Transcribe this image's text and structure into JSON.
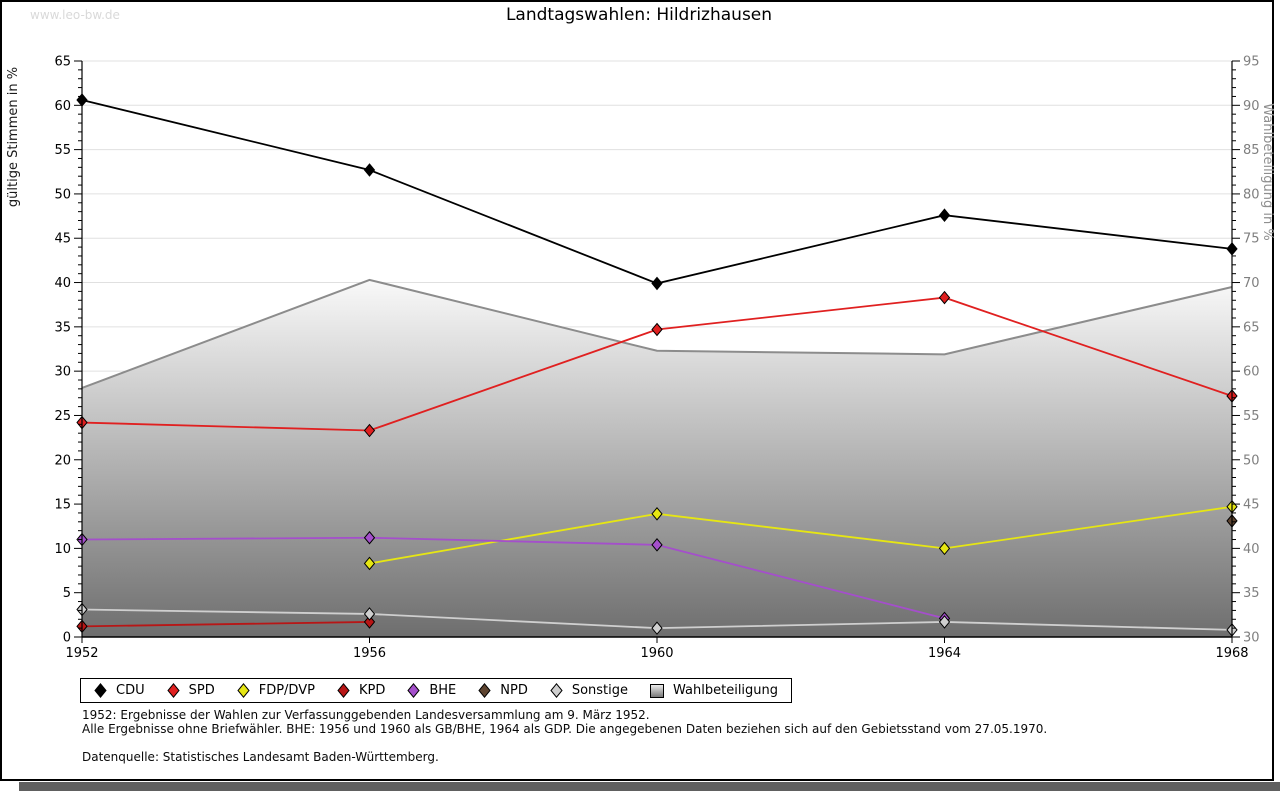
{
  "watermark": "www.leo-bw.de",
  "chart_data": {
    "type": "line",
    "title": "Landtagswahlen: Hildrizhausen",
    "x_labels": [
      "1952",
      "1956",
      "1960",
      "1964",
      "1968"
    ],
    "left_axis": {
      "label": "gültige Stimmen in %",
      "min": 0,
      "max": 65,
      "tick_step": 5
    },
    "right_axis": {
      "label": "Wahlbeteiligung in %",
      "min": 30,
      "max": 95,
      "tick_step": 5
    },
    "grid": true,
    "legend_position": "bottom",
    "series": [
      {
        "name": "CDU",
        "color": "#000000",
        "axis": "left",
        "values": [
          60.6,
          52.7,
          39.9,
          47.6,
          43.8
        ]
      },
      {
        "name": "SPD",
        "color": "#e02020",
        "axis": "left",
        "values": [
          24.2,
          23.3,
          34.7,
          38.3,
          27.2
        ]
      },
      {
        "name": "FDP/DVP",
        "color": "#e6e613",
        "axis": "left",
        "values": [
          null,
          8.3,
          13.9,
          10.0,
          14.7
        ]
      },
      {
        "name": "KPD",
        "color": "#b81616",
        "axis": "left",
        "values": [
          1.2,
          1.7,
          null,
          null,
          null
        ]
      },
      {
        "name": "BHE",
        "color": "#a44fcb",
        "axis": "left",
        "values": [
          11.0,
          11.2,
          10.4,
          2.1,
          null
        ]
      },
      {
        "name": "NPD",
        "color": "#5e4430",
        "axis": "left",
        "values": [
          null,
          null,
          null,
          null,
          13.1
        ]
      },
      {
        "name": "Sonstige",
        "color": "#cfcfcf",
        "axis": "left",
        "values": [
          3.1,
          2.6,
          1.0,
          1.7,
          0.8
        ]
      }
    ],
    "area_series": {
      "name": "Wahlbeteiligung",
      "axis": "right",
      "values": [
        58.1,
        70.3,
        62.3,
        61.9,
        69.5
      ],
      "fill_top": "#fbfbfb",
      "fill_bottom": "#6e6e6e",
      "edge_color": "#8c8c8c"
    },
    "colors": {
      "grid": "#e0e0e0",
      "axis": "#000000",
      "right_tick_text": "#7f7f7f",
      "right_axis_title": "#8f8f8f",
      "left_tick_text": "#000000"
    }
  },
  "footnotes": {
    "line1": "1952: Ergebnisse der Wahlen zur Verfassunggebenden Landesversammlung am 9. März 1952.",
    "line2": "Alle Ergebnisse ohne Briefwähler. BHE: 1956 und 1960 als GB/BHE, 1964 als GDP. Die angegebenen Daten beziehen sich auf den Gebietsstand vom 27.05.1970.",
    "source": "Datenquelle: Statistisches Landesamt Baden-Württemberg."
  }
}
